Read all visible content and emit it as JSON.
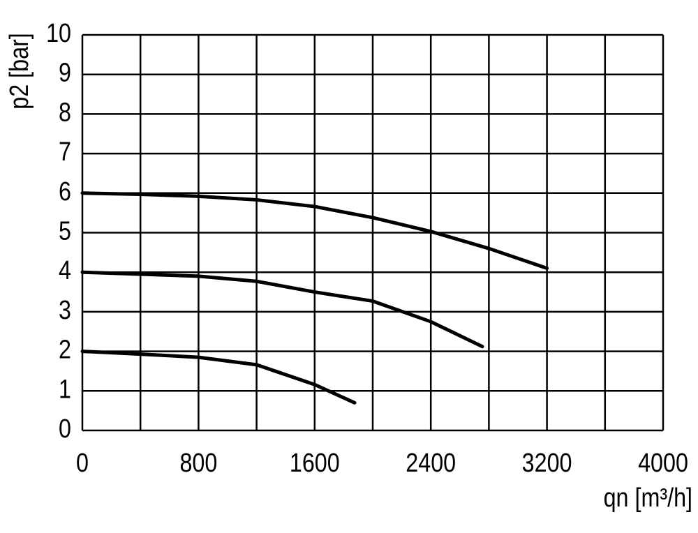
{
  "chart_data": {
    "type": "line",
    "x_label": "qn [m³/h]",
    "y_label": "p2 [bar]",
    "xlim": [
      0,
      4000
    ],
    "xticks": [
      0,
      800,
      1600,
      2400,
      3200,
      4000
    ],
    "x_minor_grid": [
      400,
      1200,
      2000,
      2800,
      3600
    ],
    "ylim": [
      0,
      10
    ],
    "yticks": [
      0,
      1,
      2,
      3,
      4,
      5,
      6,
      7,
      8,
      9,
      10
    ],
    "grid": true,
    "grid_color": "#000000",
    "series": [
      {
        "color": "#000000",
        "x": [
          0,
          400,
          800,
          1200,
          1600,
          2000,
          2400,
          2800,
          3200
        ],
        "values": [
          6.0,
          5.97,
          5.92,
          5.83,
          5.66,
          5.38,
          5.03,
          4.6,
          4.1
        ]
      },
      {
        "color": "#000000",
        "x": [
          0,
          400,
          800,
          1200,
          1600,
          2000,
          2400,
          2755
        ],
        "values": [
          4.0,
          3.95,
          3.9,
          3.77,
          3.5,
          3.27,
          2.75,
          2.12
        ]
      },
      {
        "color": "#000000",
        "x": [
          0,
          400,
          800,
          1200,
          1600,
          1875
        ],
        "values": [
          2.0,
          1.93,
          1.85,
          1.66,
          1.16,
          0.7
        ]
      }
    ]
  }
}
